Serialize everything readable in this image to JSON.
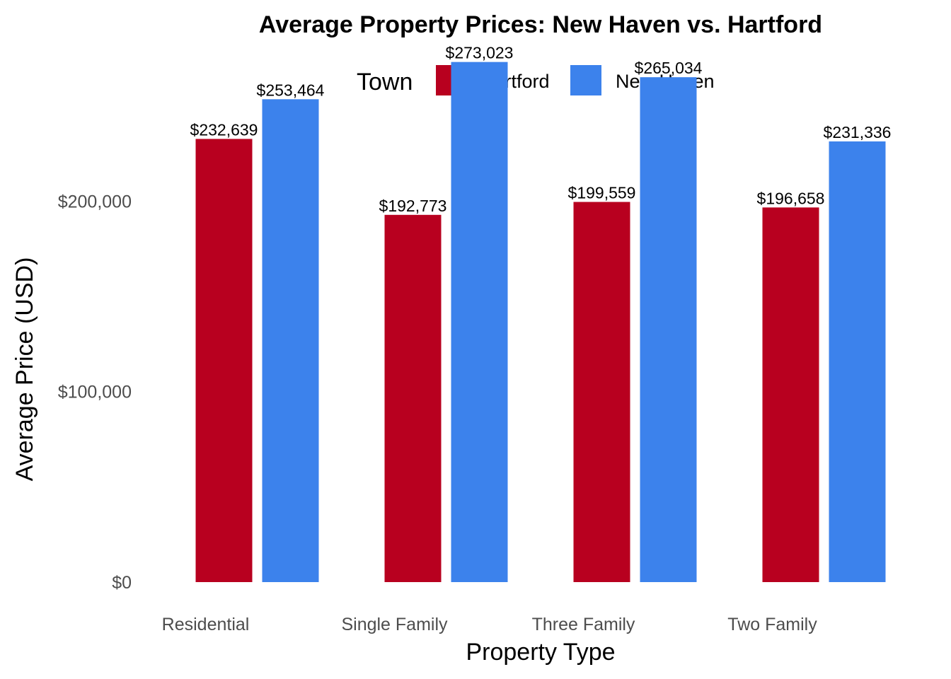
{
  "chart_data": {
    "type": "bar",
    "title": "Average Property Prices: New Haven vs. Hartford",
    "xlabel": "Property Type",
    "ylabel": "Average Price (USD)",
    "categories": [
      "Residential",
      "Single Family",
      "Three Family",
      "Two Family"
    ],
    "series": [
      {
        "name": "Hartford",
        "color": "#B8001F",
        "values": [
          232639,
          192773,
          199559,
          196658
        ],
        "labels": [
          "$232,639",
          "$192,773",
          "$199,559",
          "$196,658"
        ]
      },
      {
        "name": "New Haven",
        "color": "#3C82EC",
        "values": [
          253464,
          273023,
          265034,
          231336
        ],
        "labels": [
          "$253,464",
          "$273,023",
          "$265,034",
          "$231,336"
        ]
      }
    ],
    "legend": {
      "title": "Town",
      "position": "top"
    },
    "y_ticks": [
      0,
      100000,
      200000
    ],
    "y_tick_labels": [
      "$0",
      "$100,000",
      "$200,000"
    ],
    "ylim": [
      0,
      287000
    ],
    "grid": false
  }
}
